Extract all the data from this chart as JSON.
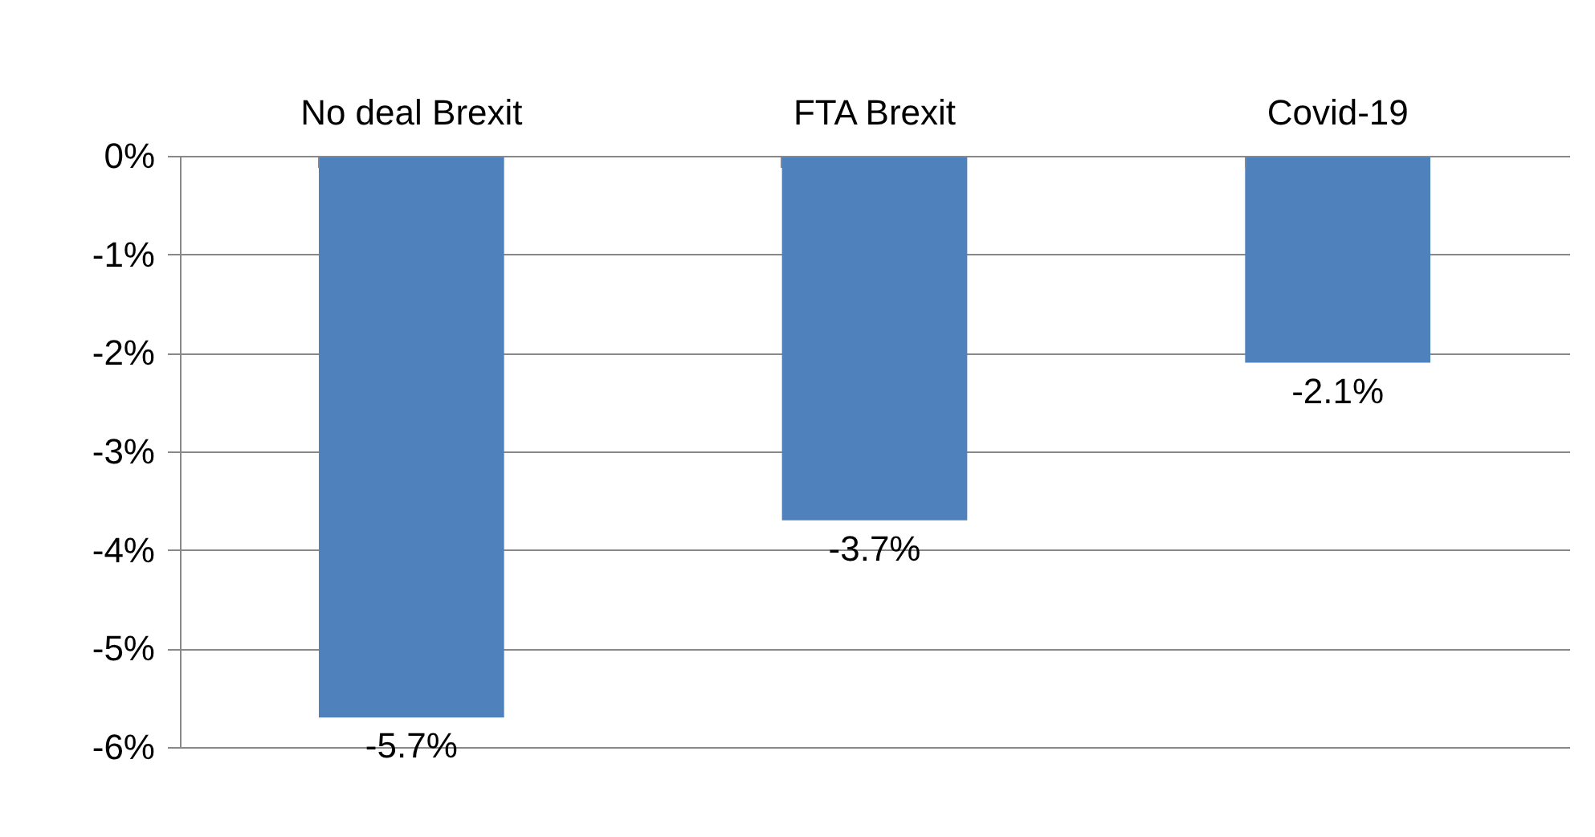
{
  "chart_data": {
    "type": "bar",
    "categories": [
      "No deal Brexit",
      "FTA Brexit",
      "Covid-19"
    ],
    "values": [
      -5.7,
      -3.7,
      -2.1
    ],
    "value_labels": [
      "-5.7%",
      "-3.7%",
      "-2.1%"
    ],
    "color": "#4f81bd",
    "ylim": [
      -6,
      0
    ],
    "yticks": [
      {
        "value": 0,
        "label": "0%"
      },
      {
        "value": -1,
        "label": "-1%"
      },
      {
        "value": -2,
        "label": "-2%"
      },
      {
        "value": -3,
        "label": "-3%"
      },
      {
        "value": -4,
        "label": "-4%"
      },
      {
        "value": -5,
        "label": "-5%"
      },
      {
        "value": -6,
        "label": "-6%"
      }
    ],
    "grid": "y"
  }
}
